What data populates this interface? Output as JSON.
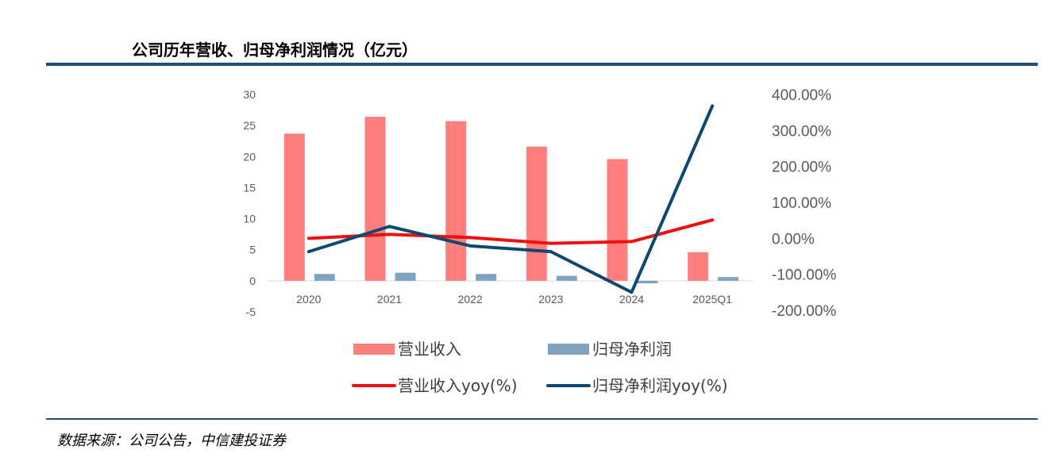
{
  "title": "公司历年营收、归母净利润情况（亿元）",
  "source": "数据来源：公司公告，中信建投证券",
  "colors": {
    "revenue_bar": "#ff7f7f",
    "profit_bar": "#7fa3bf",
    "revenue_yoy": "#ee1111",
    "profit_yoy": "#0b4a70",
    "rule": "#1f4e79"
  },
  "chart_data": {
    "type": "bar",
    "categories": [
      "2020",
      "2021",
      "2022",
      "2023",
      "2024",
      "2025Q1"
    ],
    "ylim": [
      -5,
      30
    ],
    "y_ticks": [
      30,
      25,
      20,
      15,
      10,
      5,
      0,
      -5
    ],
    "y2lim": [
      -200,
      400
    ],
    "y2_ticks": [
      "400.00%",
      "300.00%",
      "200.00%",
      "100.00%",
      "0.00%",
      "-100.00%",
      "-200.00%"
    ],
    "y2_tick_values": [
      400,
      300,
      200,
      100,
      0,
      -100,
      -200
    ],
    "grid": false,
    "legend_position": "bottom",
    "series": [
      {
        "name": "营业收入",
        "kind": "bar",
        "axis": "left",
        "values": [
          23.7,
          26.4,
          25.7,
          21.6,
          19.6,
          4.6
        ]
      },
      {
        "name": "归母净利润",
        "kind": "bar",
        "axis": "left",
        "values": [
          1.1,
          1.3,
          1.1,
          0.8,
          -0.4,
          0.6
        ]
      },
      {
        "name": "营业收入yoy(%)",
        "kind": "line",
        "axis": "right",
        "values": [
          0,
          11,
          2,
          -14,
          -9,
          51
        ]
      },
      {
        "name": "归母净利润yoy(%)",
        "kind": "line",
        "axis": "right",
        "values": [
          -37,
          33,
          -21,
          -37,
          -150,
          368
        ]
      }
    ]
  }
}
